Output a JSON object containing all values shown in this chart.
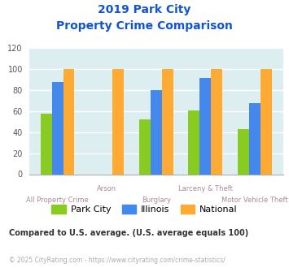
{
  "title_line1": "2019 Park City",
  "title_line2": "Property Crime Comparison",
  "categories": [
    "All Property Crime",
    "Arson",
    "Burglary",
    "Larceny & Theft",
    "Motor Vehicle Theft"
  ],
  "series": {
    "Park City": [
      58,
      null,
      52,
      61,
      43
    ],
    "Illinois": [
      88,
      null,
      80,
      92,
      68
    ],
    "National": [
      100,
      100,
      100,
      100,
      100
    ]
  },
  "colors": {
    "Park City": "#88cc22",
    "Illinois": "#4488ee",
    "National": "#ffaa33"
  },
  "ylim": [
    0,
    120
  ],
  "yticks": [
    0,
    20,
    40,
    60,
    80,
    100,
    120
  ],
  "xlabel_color": "#aa8899",
  "title_color": "#1155cc",
  "bg_color": "#ddeef0",
  "grid_color": "#ffffff",
  "footnote1": "Compared to U.S. average. (U.S. average equals 100)",
  "footnote2": "© 2025 CityRating.com - https://www.cityrating.com/crime-statistics/",
  "footnote1_color": "#333333",
  "footnote2_color": "#aaaaaa",
  "footnote2_link_color": "#4488cc"
}
